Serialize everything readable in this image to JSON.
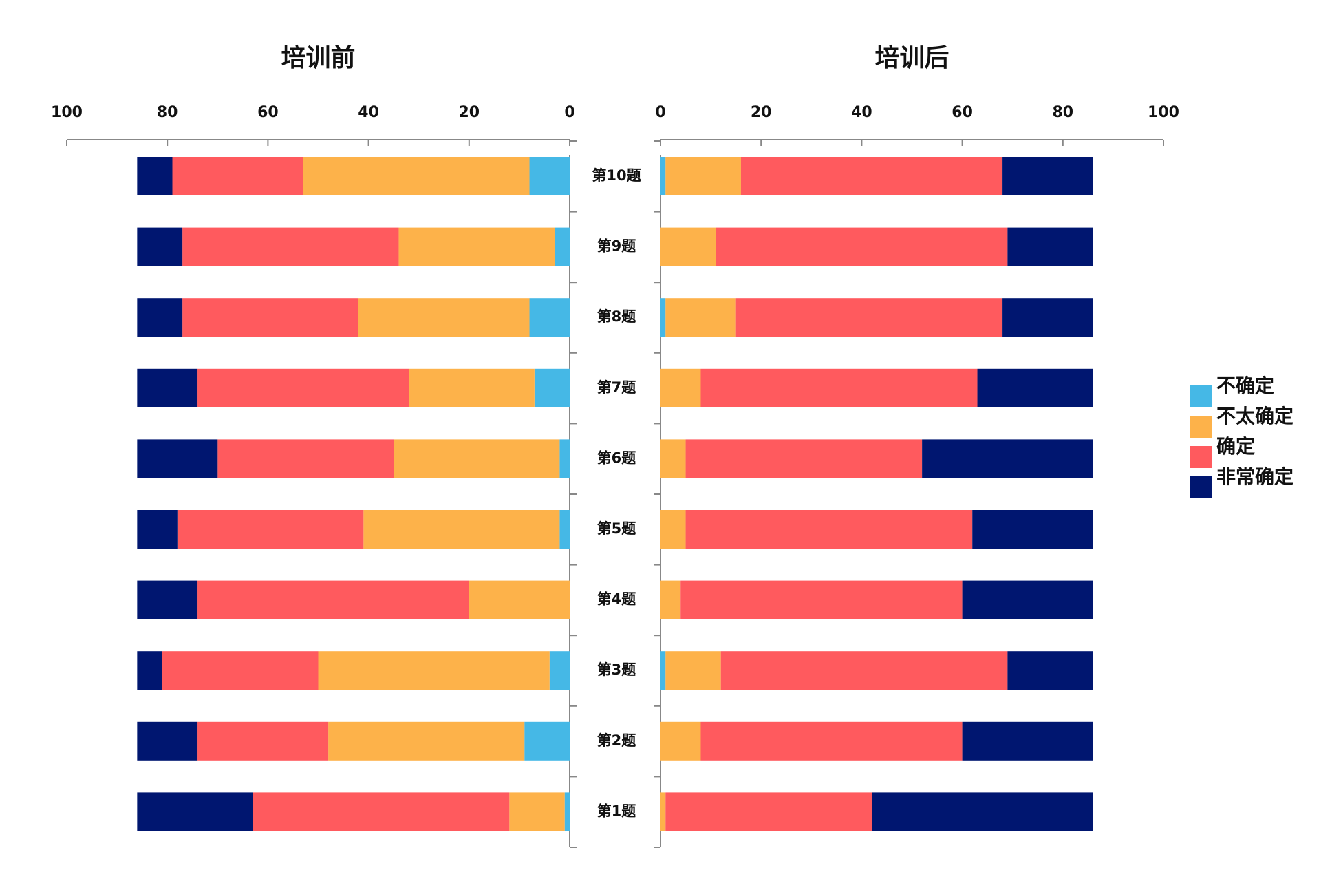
{
  "chart_data": [
    {
      "type": "bar",
      "title": "培训前",
      "x_reversed": true,
      "categories": [
        "第10题",
        "第9题",
        "第8题",
        "第7题",
        "第6题",
        "第5题",
        "第4题",
        "第3题",
        "第2题",
        "第1题"
      ],
      "xlim": [
        0,
        100
      ],
      "xticks": [
        0,
        20,
        40,
        60,
        80,
        100
      ],
      "series": [
        {
          "name": "不确定",
          "color": "#45b8e6",
          "values": [
            8,
            3,
            8,
            7,
            2,
            2,
            0,
            4,
            9,
            1
          ]
        },
        {
          "name": "不太确定",
          "color": "#fdb24a",
          "values": [
            45,
            31,
            34,
            25,
            33,
            39,
            20,
            46,
            39,
            11
          ]
        },
        {
          "name": "确定",
          "color": "#ff5a5e",
          "values": [
            26,
            43,
            35,
            42,
            35,
            37,
            54,
            31,
            26,
            51
          ]
        },
        {
          "name": "非常确定",
          "color": "#001670",
          "values": [
            7,
            9,
            9,
            12,
            16,
            8,
            12,
            5,
            12,
            23
          ]
        }
      ]
    },
    {
      "type": "bar",
      "title": "培训后",
      "x_reversed": false,
      "xlim": [
        0,
        100
      ],
      "xticks": [
        0,
        20,
        40,
        60,
        80,
        100
      ],
      "series": [
        {
          "name": "不确定",
          "color": "#45b8e6",
          "values": [
            1,
            0,
            1,
            0,
            0,
            0,
            0,
            1,
            0,
            0
          ]
        },
        {
          "name": "不太确定",
          "color": "#fdb24a",
          "values": [
            15,
            11,
            14,
            8,
            5,
            5,
            4,
            11,
            8,
            1
          ]
        },
        {
          "name": "确定",
          "color": "#ff5a5e",
          "values": [
            52,
            58,
            53,
            55,
            47,
            57,
            56,
            57,
            52,
            41
          ]
        },
        {
          "name": "非常确定",
          "color": "#001670",
          "values": [
            18,
            17,
            18,
            23,
            34,
            24,
            26,
            17,
            26,
            44
          ]
        }
      ]
    }
  ]
}
